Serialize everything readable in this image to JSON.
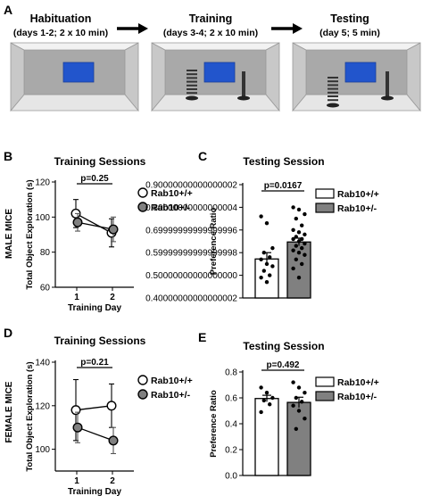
{
  "panels": {
    "A": {
      "letter": "A",
      "stages": [
        {
          "title": "Habituation",
          "detail": "(days 1-2; 2 x 10 min)"
        },
        {
          "title": "Training",
          "detail": "(days 3-4; 2 x 10 min)"
        },
        {
          "title": "Testing",
          "detail": "(day 5; 5 min)"
        }
      ]
    },
    "B": {
      "letter": "B",
      "row_label": "MALE MICE"
    },
    "C": {
      "letter": "C"
    },
    "D": {
      "letter": "D",
      "row_label": "FEMALE MICE"
    },
    "E": {
      "letter": "E"
    }
  },
  "colors": {
    "wt": "#ffffff",
    "het": "#808080",
    "screen": "#2255cc",
    "box_wall": "#c8c8c8",
    "box_back": "#a9a9a9"
  },
  "chart_data": [
    {
      "id": "B",
      "type": "line",
      "title": "Training Sessions",
      "xlabel": "Training Day",
      "ylabel": "Total Object Exploration (s)",
      "categories": [
        "1",
        "2"
      ],
      "ylim": [
        60,
        120
      ],
      "yticks": [
        60,
        80,
        100,
        120
      ],
      "annotation": "p=0.25",
      "series": [
        {
          "name": "Rab10+/+",
          "values": [
            102,
            91
          ],
          "errors": [
            8,
            8
          ]
        },
        {
          "name": "Rab10+/-",
          "values": [
            97,
            93
          ],
          "errors": [
            5,
            7
          ]
        }
      ]
    },
    {
      "id": "C",
      "type": "bar",
      "title": "Testing Session",
      "ylabel": "Preference Ratio",
      "ylim": [
        0.4,
        0.9
      ],
      "yticks": [
        0.4,
        0.5,
        0.6,
        0.7,
        0.8,
        0.9
      ],
      "annotation": "p=0.0167",
      "series": [
        {
          "name": "Rab10+/+",
          "value": 0.572,
          "error": 0.028,
          "points": [
            0.76,
            0.73,
            0.62,
            0.6,
            0.58,
            0.57,
            0.55,
            0.54,
            0.52,
            0.5,
            0.49,
            0.47
          ]
        },
        {
          "name": "Rab10+/-",
          "value": 0.647,
          "error": 0.017,
          "points": [
            0.8,
            0.79,
            0.77,
            0.75,
            0.72,
            0.7,
            0.69,
            0.68,
            0.67,
            0.66,
            0.66,
            0.65,
            0.64,
            0.63,
            0.62,
            0.61,
            0.6,
            0.59,
            0.57,
            0.55,
            0.53,
            0.49
          ]
        }
      ]
    },
    {
      "id": "D",
      "type": "line",
      "title": "Training Sessions",
      "xlabel": "Training Day",
      "ylabel": "Total Object Exploration (s)",
      "categories": [
        "1",
        "2"
      ],
      "ylim": [
        90,
        140
      ],
      "yticks": [
        100,
        120,
        140
      ],
      "annotation": "p=0.21",
      "series": [
        {
          "name": "Rab10+/+",
          "values": [
            118,
            120
          ],
          "errors": [
            14,
            10
          ]
        },
        {
          "name": "Rab10+/-",
          "values": [
            110,
            104
          ],
          "errors": [
            7,
            6
          ]
        }
      ]
    },
    {
      "id": "E",
      "type": "bar",
      "title": "Testing Session",
      "ylabel": "Preference Ratio",
      "ylim": [
        0.0,
        0.8
      ],
      "yticks": [
        0.0,
        0.2,
        0.4,
        0.6,
        0.8
      ],
      "annotation": "p=0.492",
      "series": [
        {
          "name": "Rab10+/+",
          "value": 0.595,
          "error": 0.025,
          "points": [
            0.68,
            0.64,
            0.6,
            0.58,
            0.55,
            0.49
          ]
        },
        {
          "name": "Rab10+/-",
          "value": 0.565,
          "error": 0.04,
          "points": [
            0.72,
            0.68,
            0.64,
            0.6,
            0.57,
            0.54,
            0.5,
            0.44,
            0.36
          ]
        }
      ]
    }
  ]
}
